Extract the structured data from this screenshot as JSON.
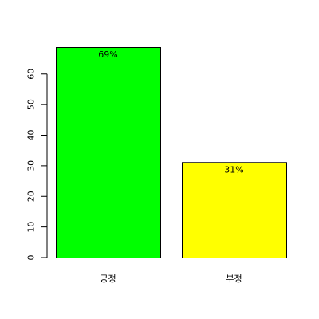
{
  "chart_data": {
    "type": "bar",
    "categories": [
      "긍정",
      "부정"
    ],
    "values": [
      68.8,
      31.2
    ],
    "data_labels": [
      "69%",
      "31%"
    ],
    "colors": [
      "#00ff00",
      "#ffff00"
    ],
    "y_ticks": [
      0,
      10,
      20,
      30,
      40,
      50,
      60
    ],
    "ylim": [
      0,
      68.8
    ],
    "grid": false,
    "legend": "none",
    "title": "",
    "xlabel": "",
    "ylabel": ""
  }
}
